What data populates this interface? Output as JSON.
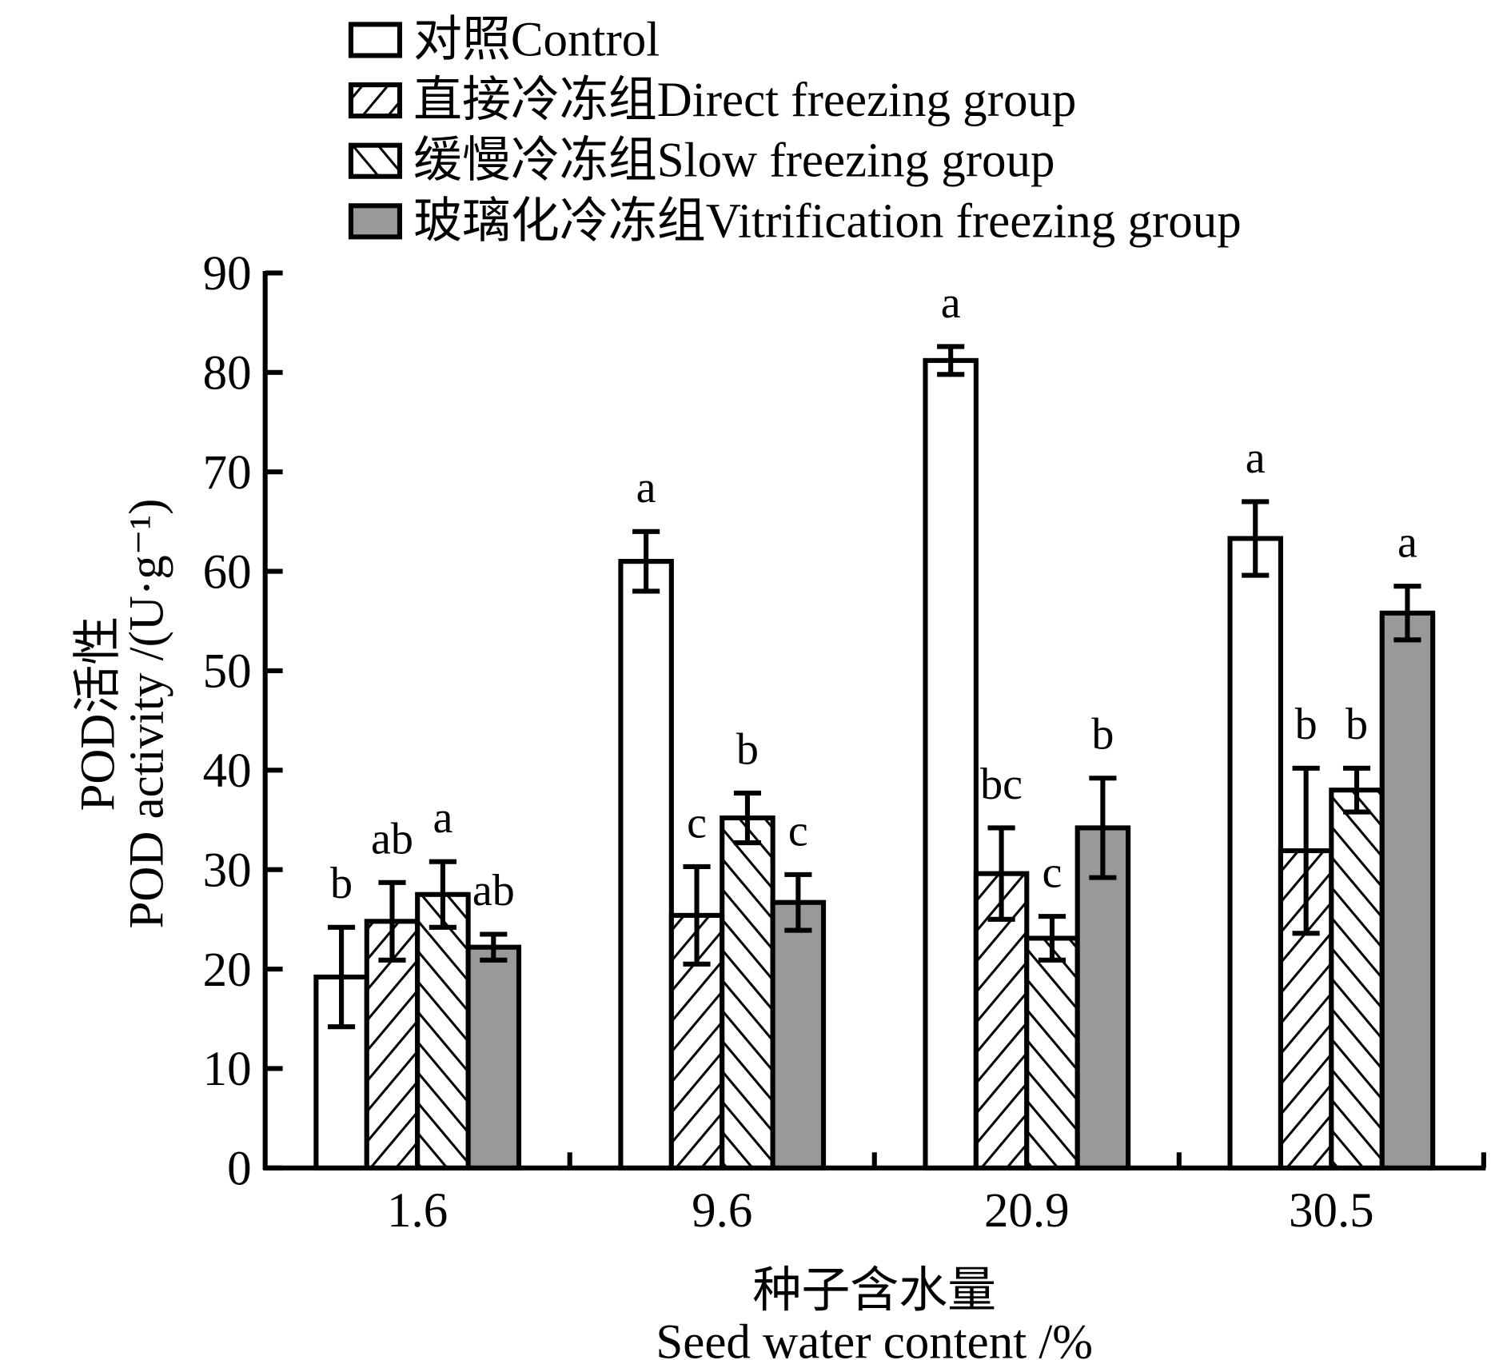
{
  "chart_data": {
    "type": "bar",
    "title": "",
    "xlabel_cn": "种子含水量",
    "xlabel": "Seed water content /%",
    "ylabel_cn": "POD活性",
    "ylabel": "POD activity /(U·g⁻¹)",
    "ylim": [
      0,
      90
    ],
    "yticks": [
      0,
      10,
      20,
      30,
      40,
      50,
      60,
      70,
      80,
      90
    ],
    "categories": [
      "1.6",
      "9.6",
      "20.9",
      "30.5"
    ],
    "legend_position": "top",
    "grid": false,
    "series": [
      {
        "name": "对照Control",
        "pattern": "empty",
        "color": "#ffffff",
        "values": [
          19.2,
          61.0,
          81.2,
          63.3
        ],
        "errors": [
          5.0,
          3.0,
          1.4,
          3.7
        ],
        "letters": [
          "b",
          "a",
          "a",
          "a"
        ]
      },
      {
        "name": "直接冷冻组Direct freezing group",
        "pattern": "forward-hatch",
        "color": "#ffffff",
        "values": [
          24.8,
          25.4,
          29.6,
          31.9
        ],
        "errors": [
          3.9,
          4.9,
          4.6,
          8.3
        ],
        "letters": [
          "ab",
          "c",
          "bc",
          "b"
        ]
      },
      {
        "name": "缓慢冷冻组Slow freezing group",
        "pattern": "backward-hatch",
        "color": "#ffffff",
        "values": [
          27.5,
          35.2,
          23.1,
          38.0
        ],
        "errors": [
          3.3,
          2.5,
          2.2,
          2.2
        ],
        "letters": [
          "a",
          "b",
          "c",
          "b"
        ]
      },
      {
        "name": "玻璃化冷冻组Vitrification freezing group",
        "pattern": "solid",
        "color": "#999999",
        "values": [
          22.2,
          26.7,
          34.2,
          55.8
        ],
        "errors": [
          1.3,
          2.8,
          5.0,
          2.7
        ],
        "letters": [
          "ab",
          "c",
          "b",
          "a"
        ]
      }
    ]
  }
}
